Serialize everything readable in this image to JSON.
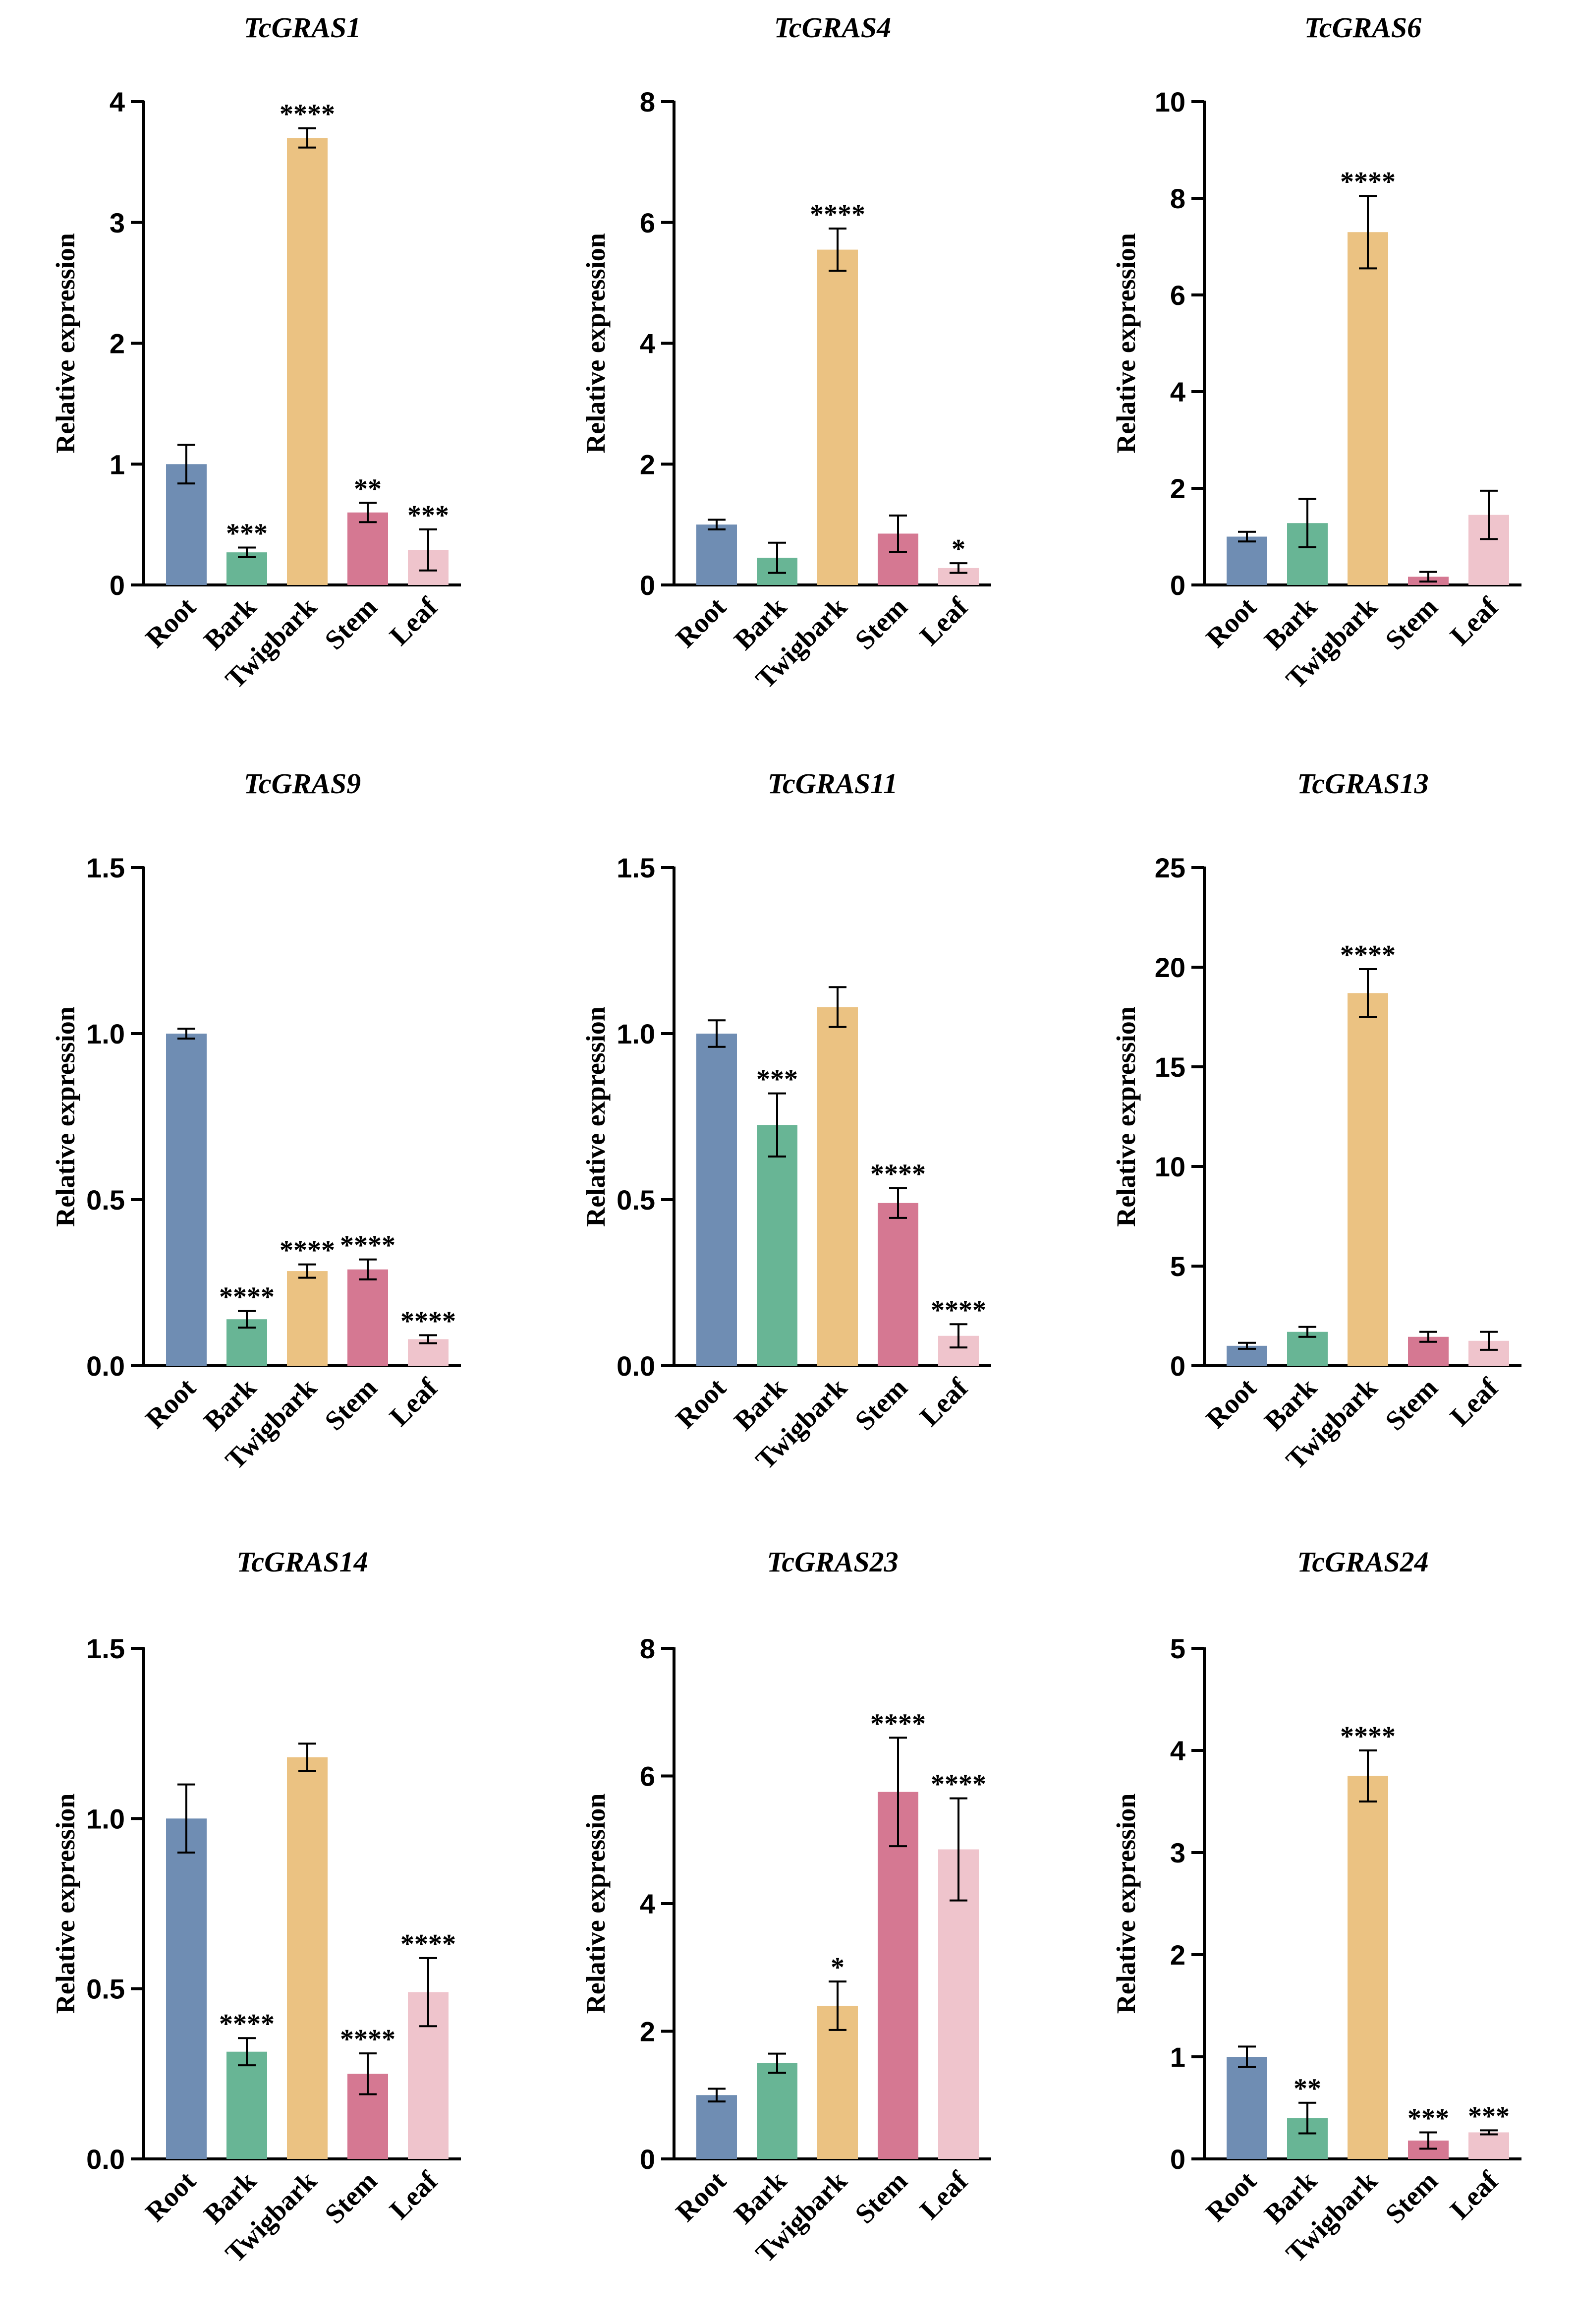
{
  "figure": {
    "ylabel": "Relative expression",
    "categories": [
      "Root",
      "Bark",
      "Twigbark",
      "Stem",
      "Leaf"
    ],
    "colors": {
      "Root": "#6f8db3",
      "Bark": "#68b595",
      "Twigbark": "#ebc282",
      "Stem": "#d57892",
      "Leaf": "#efc4cc",
      "axis": "#000000"
    }
  },
  "chart_data": [
    {
      "type": "bar",
      "title": "TcGRAS1",
      "xlabel": "",
      "ylabel": "Relative expression",
      "categories": [
        "Root",
        "Bark",
        "Twigbark",
        "Stem",
        "Leaf"
      ],
      "values": [
        1.0,
        0.27,
        3.7,
        0.6,
        0.29
      ],
      "errors": [
        0.16,
        0.04,
        0.08,
        0.08,
        0.17
      ],
      "annotations": [
        "",
        "***",
        "****",
        "**",
        "***"
      ],
      "ylim": [
        0,
        4
      ],
      "yticks": [
        0,
        1,
        2,
        3,
        4
      ],
      "ytick_labels": [
        "0",
        "1",
        "2",
        "3",
        "4"
      ]
    },
    {
      "type": "bar",
      "title": "TcGRAS4",
      "xlabel": "",
      "ylabel": "Relative expression",
      "categories": [
        "Root",
        "Bark",
        "Twigbark",
        "Stem",
        "Leaf"
      ],
      "values": [
        1.0,
        0.45,
        5.55,
        0.85,
        0.28
      ],
      "errors": [
        0.08,
        0.25,
        0.35,
        0.3,
        0.08
      ],
      "annotations": [
        "",
        "",
        "****",
        "",
        "*"
      ],
      "ylim": [
        0,
        8
      ],
      "yticks": [
        0,
        2,
        4,
        6,
        8
      ],
      "ytick_labels": [
        "0",
        "2",
        "4",
        "6",
        "8"
      ]
    },
    {
      "type": "bar",
      "title": "TcGRAS6",
      "xlabel": "",
      "ylabel": "Relative expression",
      "categories": [
        "Root",
        "Bark",
        "Twigbark",
        "Stem",
        "Leaf"
      ],
      "values": [
        1.0,
        1.28,
        7.3,
        0.17,
        1.45
      ],
      "errors": [
        0.1,
        0.5,
        0.75,
        0.1,
        0.5
      ],
      "annotations": [
        "",
        "",
        "****",
        "",
        ""
      ],
      "ylim": [
        0,
        10
      ],
      "yticks": [
        0,
        2,
        4,
        6,
        8,
        10
      ],
      "ytick_labels": [
        "0",
        "2",
        "4",
        "6",
        "8",
        "10"
      ]
    },
    {
      "type": "bar",
      "title": "TcGRAS9",
      "xlabel": "",
      "ylabel": "Relative expression",
      "categories": [
        "Root",
        "Bark",
        "Twigbark",
        "Stem",
        "Leaf"
      ],
      "values": [
        1.0,
        0.14,
        0.285,
        0.29,
        0.08
      ],
      "errors": [
        0.015,
        0.025,
        0.02,
        0.03,
        0.012
      ],
      "annotations": [
        "",
        "****",
        "****",
        "****",
        "****"
      ],
      "ylim": [
        0,
        1.5
      ],
      "yticks": [
        0,
        0.5,
        1.0,
        1.5
      ],
      "ytick_labels": [
        "0.0",
        "0.5",
        "1.0",
        "1.5"
      ]
    },
    {
      "type": "bar",
      "title": "TcGRAS11",
      "xlabel": "",
      "ylabel": "Relative expression",
      "categories": [
        "Root",
        "Bark",
        "Twigbark",
        "Stem",
        "Leaf"
      ],
      "values": [
        1.0,
        0.725,
        1.08,
        0.49,
        0.09
      ],
      "errors": [
        0.04,
        0.095,
        0.06,
        0.045,
        0.035
      ],
      "annotations": [
        "",
        "***",
        "",
        "****",
        "****"
      ],
      "ylim": [
        0,
        1.5
      ],
      "yticks": [
        0,
        0.5,
        1.0,
        1.5
      ],
      "ytick_labels": [
        "0.0",
        "0.5",
        "1.0",
        "1.5"
      ]
    },
    {
      "type": "bar",
      "title": "TcGRAS13",
      "xlabel": "",
      "ylabel": "Relative expression",
      "categories": [
        "Root",
        "Bark",
        "Twigbark",
        "Stem",
        "Leaf"
      ],
      "values": [
        1.0,
        1.7,
        18.7,
        1.45,
        1.25
      ],
      "errors": [
        0.15,
        0.25,
        1.2,
        0.25,
        0.45
      ],
      "annotations": [
        "",
        "",
        "****",
        "",
        ""
      ],
      "ylim": [
        0,
        25
      ],
      "yticks": [
        0,
        5,
        10,
        15,
        20,
        25
      ],
      "ytick_labels": [
        "0",
        "5",
        "10",
        "15",
        "20",
        "25"
      ]
    },
    {
      "type": "bar",
      "title": "TcGRAS14",
      "xlabel": "",
      "ylabel": "Relative expression",
      "categories": [
        "Root",
        "Bark",
        "Twigbark",
        "Stem",
        "Leaf"
      ],
      "values": [
        1.0,
        0.315,
        1.18,
        0.25,
        0.49
      ],
      "errors": [
        0.1,
        0.04,
        0.04,
        0.06,
        0.1
      ],
      "annotations": [
        "",
        "****",
        "",
        "****",
        "****"
      ],
      "ylim": [
        0,
        1.5
      ],
      "yticks": [
        0,
        0.5,
        1.0,
        1.5
      ],
      "ytick_labels": [
        "0.0",
        "0.5",
        "1.0",
        "1.5"
      ]
    },
    {
      "type": "bar",
      "title": "TcGRAS23",
      "xlabel": "",
      "ylabel": "Relative expression",
      "categories": [
        "Root",
        "Bark",
        "Twigbark",
        "Stem",
        "Leaf"
      ],
      "values": [
        1.0,
        1.5,
        2.4,
        5.75,
        4.85
      ],
      "errors": [
        0.1,
        0.15,
        0.38,
        0.85,
        0.8
      ],
      "annotations": [
        "",
        "",
        "*",
        "****",
        "****"
      ],
      "ylim": [
        0,
        8
      ],
      "yticks": [
        0,
        2,
        4,
        6,
        8
      ],
      "ytick_labels": [
        "0",
        "2",
        "4",
        "6",
        "8"
      ]
    },
    {
      "type": "bar",
      "title": "TcGRAS24",
      "xlabel": "",
      "ylabel": "Relative expression",
      "categories": [
        "Root",
        "Bark",
        "Twigbark",
        "Stem",
        "Leaf"
      ],
      "values": [
        1.0,
        0.4,
        3.75,
        0.18,
        0.26
      ],
      "errors": [
        0.1,
        0.15,
        0.25,
        0.08,
        0.02
      ],
      "annotations": [
        "",
        "**",
        "****",
        "***",
        "***"
      ],
      "ylim": [
        0,
        5
      ],
      "yticks": [
        0,
        1,
        2,
        3,
        4,
        5
      ],
      "ytick_labels": [
        "0",
        "1",
        "2",
        "3",
        "4",
        "5"
      ]
    }
  ]
}
